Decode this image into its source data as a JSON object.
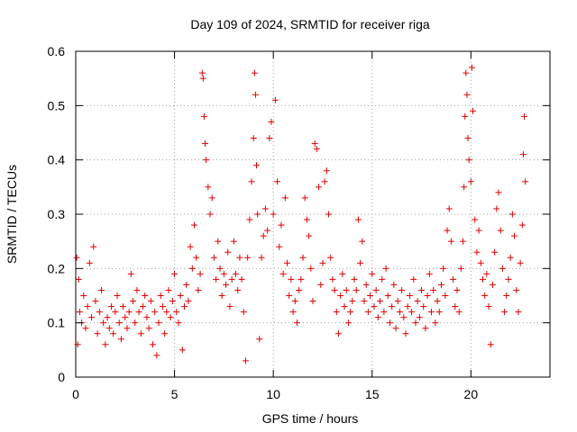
{
  "chart_data": {
    "type": "scatter",
    "title": "Day 109 of 2024, SRMTID for receiver riga",
    "xlabel": "GPS time / hours",
    "ylabel": "SRMTID / TECUs",
    "xlim": [
      0,
      24
    ],
    "ylim": [
      0,
      0.6
    ],
    "xticks": [
      0,
      5,
      10,
      15,
      20
    ],
    "xtick_labels": [
      "0",
      "5",
      "10",
      "15",
      "20"
    ],
    "yticks": [
      0,
      0.1,
      0.2,
      0.3,
      0.4,
      0.5,
      0.6
    ],
    "ytick_labels": [
      "0",
      "0.1",
      "0.2",
      "0.3",
      "0.4",
      "0.5",
      "0.6"
    ],
    "grid": true,
    "marker": "+",
    "color": "#e00000",
    "series": [
      {
        "name": "SRMTID",
        "points": [
          [
            0.05,
            0.22
          ],
          [
            0.1,
            0.06
          ],
          [
            0.15,
            0.18
          ],
          [
            0.2,
            0.12
          ],
          [
            0.3,
            0.1
          ],
          [
            0.4,
            0.15
          ],
          [
            0.5,
            0.09
          ],
          [
            0.6,
            0.13
          ],
          [
            0.7,
            0.21
          ],
          [
            0.8,
            0.11
          ],
          [
            0.9,
            0.24
          ],
          [
            1.0,
            0.14
          ],
          [
            1.1,
            0.08
          ],
          [
            1.2,
            0.12
          ],
          [
            1.3,
            0.16
          ],
          [
            1.4,
            0.1
          ],
          [
            1.5,
            0.06
          ],
          [
            1.6,
            0.11
          ],
          [
            1.7,
            0.09
          ],
          [
            1.8,
            0.13
          ],
          [
            1.9,
            0.08
          ],
          [
            2.0,
            0.12
          ],
          [
            2.1,
            0.15
          ],
          [
            2.2,
            0.1
          ],
          [
            2.3,
            0.07
          ],
          [
            2.4,
            0.13
          ],
          [
            2.5,
            0.11
          ],
          [
            2.6,
            0.09
          ],
          [
            2.7,
            0.12
          ],
          [
            2.8,
            0.19
          ],
          [
            2.9,
            0.14
          ],
          [
            3.0,
            0.1
          ],
          [
            3.1,
            0.16
          ],
          [
            3.2,
            0.12
          ],
          [
            3.3,
            0.08
          ],
          [
            3.4,
            0.13
          ],
          [
            3.5,
            0.15
          ],
          [
            3.6,
            0.11
          ],
          [
            3.7,
            0.09
          ],
          [
            3.8,
            0.14
          ],
          [
            3.9,
            0.06
          ],
          [
            4.0,
            0.12
          ],
          [
            4.1,
            0.04
          ],
          [
            4.2,
            0.1
          ],
          [
            4.3,
            0.15
          ],
          [
            4.4,
            0.13
          ],
          [
            4.5,
            0.08
          ],
          [
            4.6,
            0.12
          ],
          [
            4.7,
            0.16
          ],
          [
            4.8,
            0.11
          ],
          [
            4.9,
            0.14
          ],
          [
            5.0,
            0.19
          ],
          [
            5.1,
            0.12
          ],
          [
            5.2,
            0.1
          ],
          [
            5.3,
            0.15
          ],
          [
            5.4,
            0.05
          ],
          [
            5.5,
            0.13
          ],
          [
            5.6,
            0.17
          ],
          [
            5.7,
            0.14
          ],
          [
            5.8,
            0.24
          ],
          [
            5.9,
            0.2
          ],
          [
            6.0,
            0.28
          ],
          [
            6.1,
            0.22
          ],
          [
            6.2,
            0.16
          ],
          [
            6.3,
            0.19
          ],
          [
            6.4,
            0.56
          ],
          [
            6.45,
            0.55
          ],
          [
            6.5,
            0.48
          ],
          [
            6.55,
            0.43
          ],
          [
            6.6,
            0.4
          ],
          [
            6.7,
            0.35
          ],
          [
            6.8,
            0.3
          ],
          [
            6.9,
            0.33
          ],
          [
            7.0,
            0.22
          ],
          [
            7.1,
            0.18
          ],
          [
            7.2,
            0.25
          ],
          [
            7.3,
            0.2
          ],
          [
            7.4,
            0.15
          ],
          [
            7.5,
            0.19
          ],
          [
            7.6,
            0.17
          ],
          [
            7.7,
            0.23
          ],
          [
            7.8,
            0.13
          ],
          [
            7.9,
            0.18
          ],
          [
            8.0,
            0.25
          ],
          [
            8.1,
            0.19
          ],
          [
            8.2,
            0.16
          ],
          [
            8.3,
            0.22
          ],
          [
            8.4,
            0.18
          ],
          [
            8.5,
            0.12
          ],
          [
            8.6,
            0.03
          ],
          [
            8.7,
            0.22
          ],
          [
            8.8,
            0.29
          ],
          [
            8.9,
            0.36
          ],
          [
            9.0,
            0.44
          ],
          [
            9.05,
            0.56
          ],
          [
            9.1,
            0.52
          ],
          [
            9.15,
            0.39
          ],
          [
            9.2,
            0.3
          ],
          [
            9.3,
            0.07
          ],
          [
            9.4,
            0.22
          ],
          [
            9.5,
            0.26
          ],
          [
            9.6,
            0.31
          ],
          [
            9.7,
            0.27
          ],
          [
            9.8,
            0.44
          ],
          [
            9.9,
            0.47
          ],
          [
            10.0,
            0.3
          ],
          [
            10.1,
            0.51
          ],
          [
            10.2,
            0.36
          ],
          [
            10.3,
            0.24
          ],
          [
            10.4,
            0.28
          ],
          [
            10.5,
            0.19
          ],
          [
            10.6,
            0.33
          ],
          [
            10.7,
            0.21
          ],
          [
            10.8,
            0.15
          ],
          [
            10.9,
            0.18
          ],
          [
            11.0,
            0.12
          ],
          [
            11.1,
            0.14
          ],
          [
            11.2,
            0.1
          ],
          [
            11.3,
            0.16
          ],
          [
            11.4,
            0.18
          ],
          [
            11.5,
            0.22
          ],
          [
            11.6,
            0.33
          ],
          [
            11.7,
            0.29
          ],
          [
            11.8,
            0.26
          ],
          [
            11.9,
            0.2
          ],
          [
            12.0,
            0.14
          ],
          [
            12.1,
            0.43
          ],
          [
            12.2,
            0.42
          ],
          [
            12.3,
            0.35
          ],
          [
            12.4,
            0.17
          ],
          [
            12.5,
            0.21
          ],
          [
            12.6,
            0.36
          ],
          [
            12.7,
            0.38
          ],
          [
            12.8,
            0.3
          ],
          [
            12.9,
            0.22
          ],
          [
            13.0,
            0.18
          ],
          [
            13.1,
            0.16
          ],
          [
            13.2,
            0.12
          ],
          [
            13.3,
            0.08
          ],
          [
            13.4,
            0.15
          ],
          [
            13.5,
            0.19
          ],
          [
            13.6,
            0.13
          ],
          [
            13.7,
            0.16
          ],
          [
            13.8,
            0.1
          ],
          [
            13.9,
            0.12
          ],
          [
            14.0,
            0.14
          ],
          [
            14.1,
            0.18
          ],
          [
            14.2,
            0.16
          ],
          [
            14.3,
            0.29
          ],
          [
            14.4,
            0.21
          ],
          [
            14.5,
            0.25
          ],
          [
            14.6,
            0.14
          ],
          [
            14.7,
            0.17
          ],
          [
            14.8,
            0.12
          ],
          [
            14.9,
            0.15
          ],
          [
            15.0,
            0.19
          ],
          [
            15.1,
            0.13
          ],
          [
            15.2,
            0.16
          ],
          [
            15.3,
            0.11
          ],
          [
            15.4,
            0.14
          ],
          [
            15.5,
            0.18
          ],
          [
            15.6,
            0.12
          ],
          [
            15.7,
            0.2
          ],
          [
            15.8,
            0.15
          ],
          [
            15.9,
            0.1
          ],
          [
            16.0,
            0.13
          ],
          [
            16.1,
            0.17
          ],
          [
            16.2,
            0.09
          ],
          [
            16.3,
            0.14
          ],
          [
            16.4,
            0.12
          ],
          [
            16.5,
            0.16
          ],
          [
            16.6,
            0.11
          ],
          [
            16.7,
            0.08
          ],
          [
            16.8,
            0.13
          ],
          [
            16.9,
            0.15
          ],
          [
            17.0,
            0.12
          ],
          [
            17.1,
            0.18
          ],
          [
            17.2,
            0.1
          ],
          [
            17.3,
            0.14
          ],
          [
            17.4,
            0.11
          ],
          [
            17.5,
            0.16
          ],
          [
            17.6,
            0.13
          ],
          [
            17.7,
            0.09
          ],
          [
            17.8,
            0.15
          ],
          [
            17.9,
            0.19
          ],
          [
            18.0,
            0.12
          ],
          [
            18.1,
            0.16
          ],
          [
            18.2,
            0.1
          ],
          [
            18.3,
            0.14
          ],
          [
            18.4,
            0.12
          ],
          [
            18.5,
            0.17
          ],
          [
            18.6,
            0.2
          ],
          [
            18.7,
            0.15
          ],
          [
            18.8,
            0.27
          ],
          [
            18.9,
            0.31
          ],
          [
            19.0,
            0.25
          ],
          [
            19.1,
            0.18
          ],
          [
            19.2,
            0.13
          ],
          [
            19.3,
            0.16
          ],
          [
            19.4,
            0.12
          ],
          [
            19.5,
            0.2
          ],
          [
            19.6,
            0.25
          ],
          [
            19.65,
            0.35
          ],
          [
            19.7,
            0.48
          ],
          [
            19.75,
            0.56
          ],
          [
            19.8,
            0.52
          ],
          [
            19.85,
            0.44
          ],
          [
            19.9,
            0.4
          ],
          [
            20.0,
            0.36
          ],
          [
            20.05,
            0.57
          ],
          [
            20.1,
            0.49
          ],
          [
            20.2,
            0.29
          ],
          [
            20.3,
            0.23
          ],
          [
            20.4,
            0.27
          ],
          [
            20.5,
            0.21
          ],
          [
            20.6,
            0.18
          ],
          [
            20.7,
            0.15
          ],
          [
            20.8,
            0.19
          ],
          [
            20.9,
            0.13
          ],
          [
            21.0,
            0.06
          ],
          [
            21.1,
            0.17
          ],
          [
            21.2,
            0.23
          ],
          [
            21.3,
            0.31
          ],
          [
            21.4,
            0.34
          ],
          [
            21.5,
            0.27
          ],
          [
            21.6,
            0.2
          ],
          [
            21.7,
            0.12
          ],
          [
            21.8,
            0.15
          ],
          [
            21.9,
            0.18
          ],
          [
            22.0,
            0.22
          ],
          [
            22.1,
            0.3
          ],
          [
            22.2,
            0.26
          ],
          [
            22.3,
            0.16
          ],
          [
            22.4,
            0.12
          ],
          [
            22.5,
            0.21
          ],
          [
            22.6,
            0.28
          ],
          [
            22.65,
            0.41
          ],
          [
            22.7,
            0.48
          ],
          [
            22.75,
            0.36
          ]
        ]
      }
    ]
  }
}
